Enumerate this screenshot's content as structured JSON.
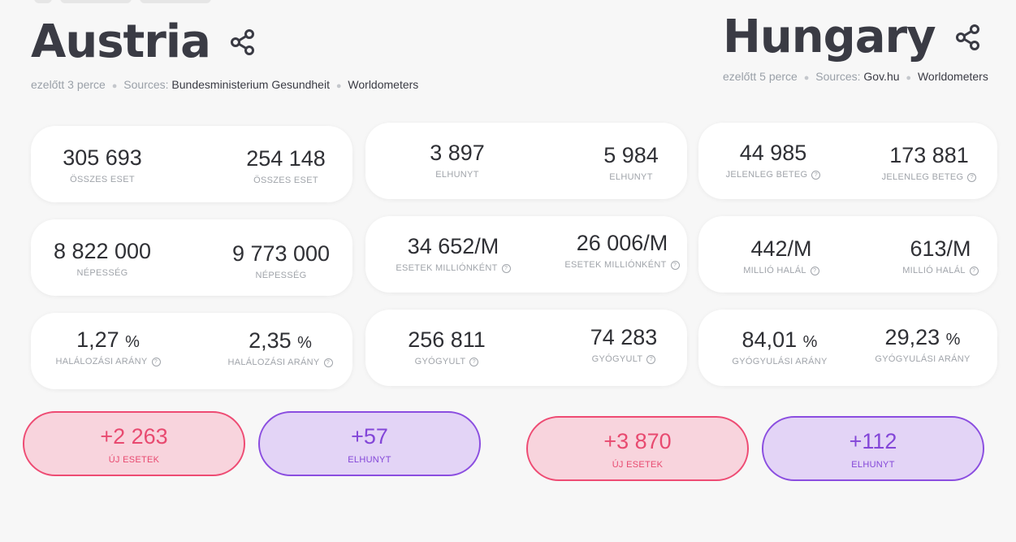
{
  "austria": {
    "name": "Austria",
    "updated": "ezelőtt 3 perce",
    "sources_label": "Sources:",
    "sources": [
      "Bundesministerium Gesundheit",
      "Worldometers"
    ]
  },
  "hungary": {
    "name": "Hungary",
    "updated": "ezelőtt 5 perce",
    "sources_label": "Sources:",
    "sources": [
      "Gov.hu",
      "Worldometers"
    ]
  },
  "cards": {
    "total_cases": {
      "label": "ÖSSZES ESET",
      "austria": "305 693",
      "hungary": "254 148"
    },
    "deaths": {
      "label": "ELHUNYT",
      "austria": "3 897",
      "hungary": "5 984"
    },
    "active": {
      "label": "JELENLEG BETEG",
      "austria": "44 985",
      "hungary": "173 881"
    },
    "population": {
      "label": "NÉPESSÉG",
      "austria": "8 822 000",
      "hungary": "9 773 000"
    },
    "cases_per_million": {
      "label": "ESETEK MILLIÓNKÉNT",
      "austria": "34 652/M",
      "hungary": "26 006/M"
    },
    "deaths_per_million": {
      "label": "MILLIÓ HALÁL",
      "austria": "442/M",
      "hungary": "613/M"
    },
    "fatality_rate": {
      "label": "HALÁLOZÁSI ARÁNY",
      "austria": "1,27",
      "hungary": "2,35",
      "unit": "%"
    },
    "recovered": {
      "label": "GYÓGYULT",
      "austria": "256 811",
      "hungary": "74 283"
    },
    "recovery_rate": {
      "label": "GYÓGYULÁSI ARÁNY",
      "austria": "84,01",
      "hungary": "29,23",
      "unit": "%"
    }
  },
  "daily": {
    "austria": {
      "new_cases": {
        "value": "+2 263",
        "label": "ÚJ ESETEK"
      },
      "new_deaths": {
        "value": "+57",
        "label": "ELHUNYT"
      }
    },
    "hungary": {
      "new_cases": {
        "value": "+3 870",
        "label": "ÚJ ESETEK"
      },
      "new_deaths": {
        "value": "+112",
        "label": "ELHUNYT"
      }
    }
  },
  "icons": {
    "share": "share-icon",
    "info": "question-circle-icon"
  },
  "colors": {
    "cases_accent": "#ee4b73",
    "deaths_accent": "#8b4ee0"
  }
}
